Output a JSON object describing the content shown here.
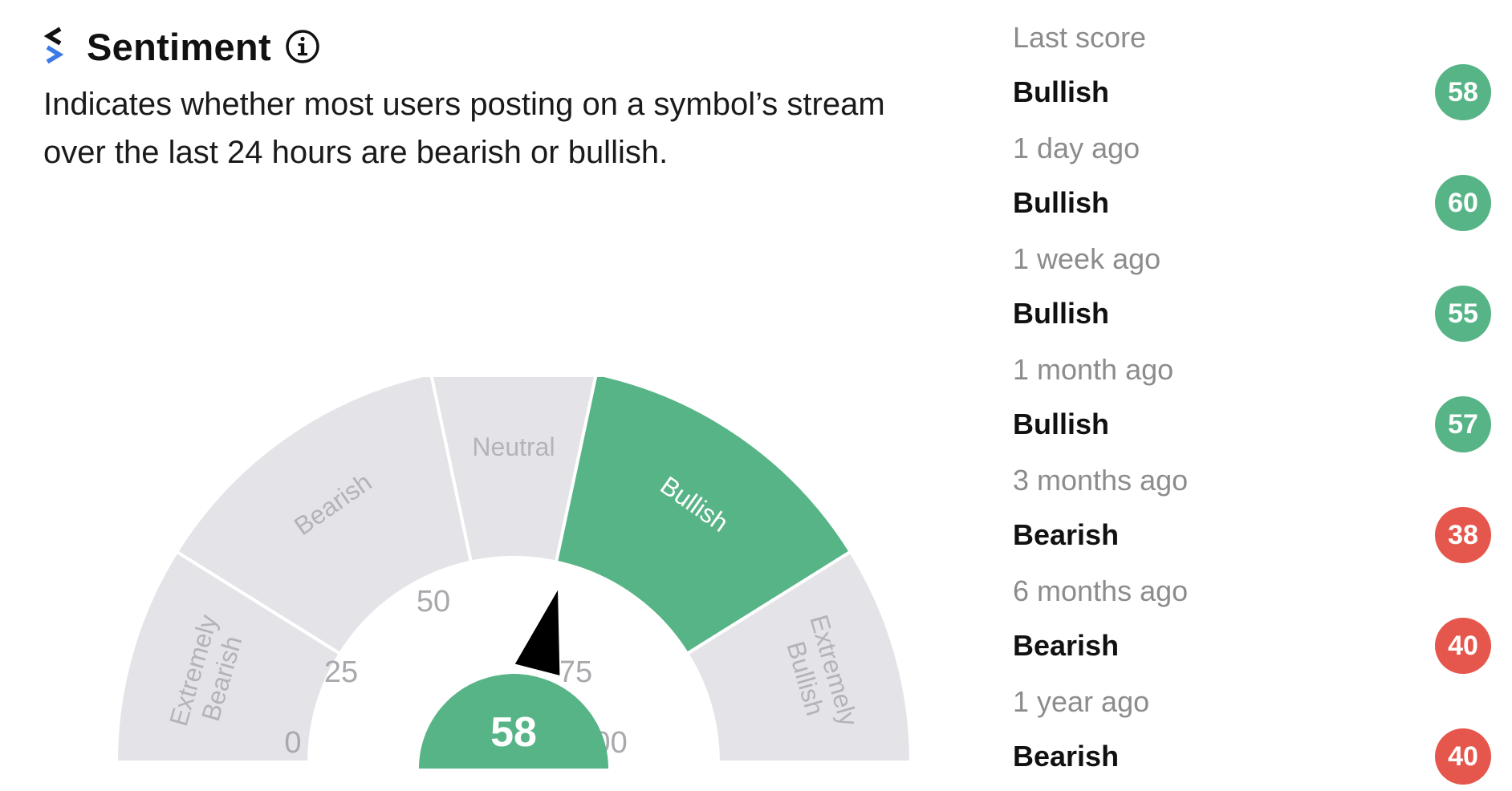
{
  "header": {
    "title": "Sentiment",
    "logo_icon": "stocktwits-logo-icon",
    "info_icon": "info-circle-icon"
  },
  "description": {
    "line1": "Indicates whether most users posting on a symbol’s stream",
    "line2": "over the last 24 hours are bearish or bullish."
  },
  "gauge": {
    "value": 58,
    "value_label": "58",
    "range": [
      0,
      100
    ],
    "ticks": [
      "0",
      "25",
      "50",
      "75",
      "100"
    ],
    "segments": [
      {
        "line1": "Extremely",
        "line2": "Bearish",
        "active": false
      },
      {
        "line1": "Bearish",
        "line2": "",
        "active": false
      },
      {
        "line1": "Neutral",
        "line2": "",
        "active": false
      },
      {
        "line1": "Bullish",
        "line2": "",
        "active": true
      },
      {
        "line1": "Extremely",
        "line2": "Bullish",
        "active": false
      }
    ],
    "active_color": "#57b486",
    "inactive_color": "#e4e4e8",
    "needle_icon": "needle-pointer-icon"
  },
  "history": [
    {
      "when": "Last score",
      "sentiment": "Bullish",
      "score": "58",
      "color": "#57b486"
    },
    {
      "when": "1 day ago",
      "sentiment": "Bullish",
      "score": "60",
      "color": "#57b486"
    },
    {
      "when": "1 week ago",
      "sentiment": "Bullish",
      "score": "55",
      "color": "#57b486"
    },
    {
      "when": "1 month ago",
      "sentiment": "Bullish",
      "score": "57",
      "color": "#57b486"
    },
    {
      "when": "3 months ago",
      "sentiment": "Bearish",
      "score": "38",
      "color": "#e5574c"
    },
    {
      "when": "6 months ago",
      "sentiment": "Bearish",
      "score": "40",
      "color": "#e5574c"
    },
    {
      "when": "1 year ago",
      "sentiment": "Bearish",
      "score": "40",
      "color": "#e5574c"
    }
  ]
}
